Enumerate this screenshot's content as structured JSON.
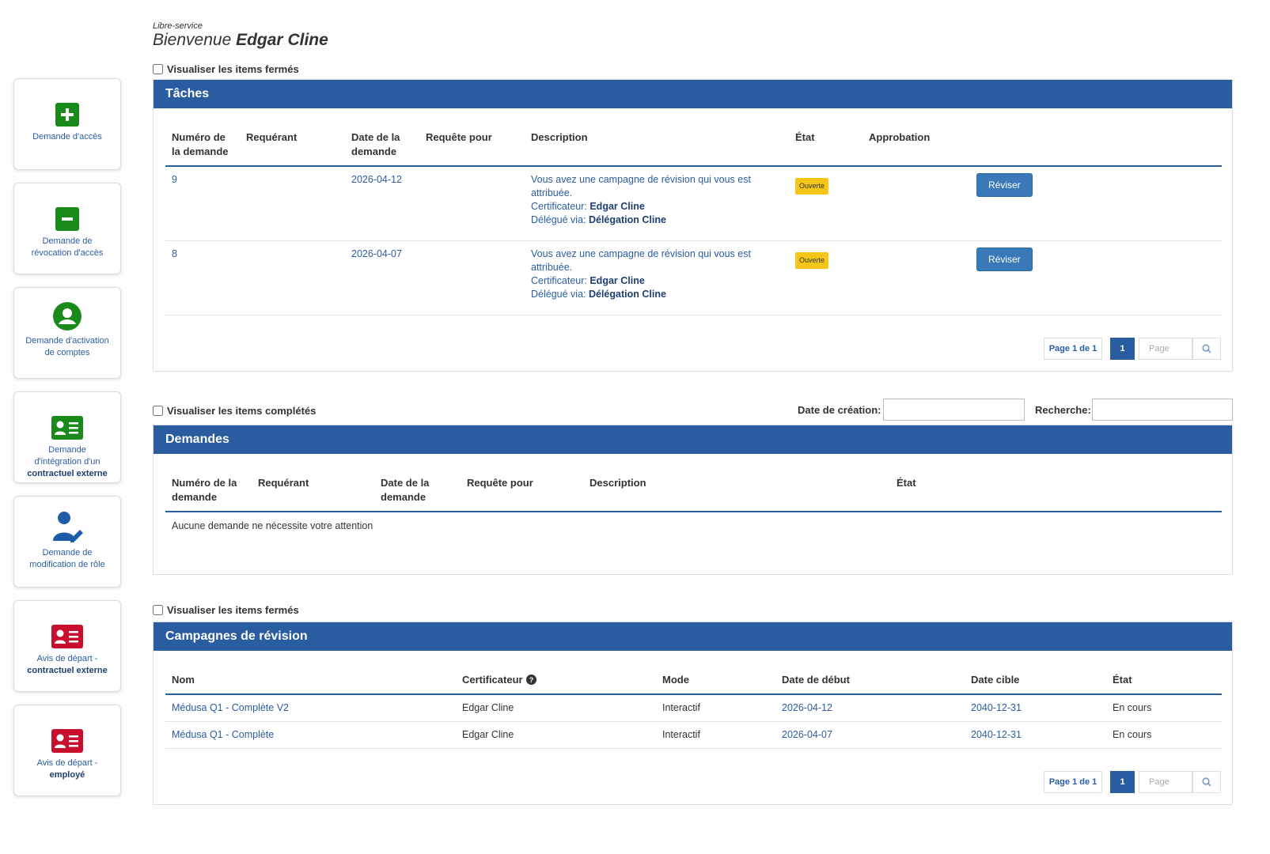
{
  "header": {
    "kicker": "Libre-service",
    "welcome": "Bienvenue",
    "user": "Edgar Cline"
  },
  "sidebar": {
    "tiles": [
      {
        "text": "Demande d'accès"
      },
      {
        "text": "Demande de révocation d'accès"
      },
      {
        "text": "Demande d'activation de comptes"
      },
      {
        "text": "Demande d'intégration d'un",
        "strong": "contractuel externe"
      },
      {
        "text": "Demande de modification de rôle"
      },
      {
        "text": "Avis de départ -",
        "strong": "contractuel externe"
      },
      {
        "text": "Avis de départ -",
        "strong": "employé"
      }
    ]
  },
  "tasks": {
    "toggle": "Visualiser les items fermés",
    "title": "Tâches",
    "columns": [
      "Numéro de la demande",
      "Requérant",
      "Date de la demande",
      "Requête pour",
      "Description",
      "État",
      "Approbation"
    ],
    "rows": [
      {
        "number": "9",
        "date": "2026-04-12",
        "description": "Vous avez une campagne de révision qui vous est attribuée.",
        "certifier_label": "Certificateur:",
        "certifier": "Edgar Cline",
        "delegate_label": "Délégué via:",
        "delegate": "Délégation Cline",
        "status": "Ouverte",
        "action": "Réviser"
      },
      {
        "number": "8",
        "date": "2026-04-07",
        "description": "Vous avez une campagne de révision qui vous est attribuée.",
        "certifier_label": "Certificateur:",
        "certifier": "Edgar Cline",
        "delegate_label": "Délégué via:",
        "delegate": "Délégation Cline",
        "status": "Ouverte",
        "action": "Réviser"
      }
    ],
    "pager": {
      "label": "Page 1 de 1",
      "current": "1",
      "placeholder": "Page"
    }
  },
  "requests": {
    "toggle": "Visualiser les items complétés",
    "created_label": "Date de création:",
    "search_label": "Recherche:",
    "title": "Demandes",
    "columns": [
      "Numéro de la demande",
      "Requérant",
      "Date de la demande",
      "Requête pour",
      "Description",
      "État"
    ],
    "empty": "Aucune demande ne nécessite votre attention"
  },
  "campaigns": {
    "toggle": "Visualiser les items fermés",
    "title": "Campagnes de révision",
    "columns": [
      "Nom",
      "Certificateur",
      "Mode",
      "Date de début",
      "Date cible",
      "État"
    ],
    "rows": [
      {
        "name": "Médusa Q1 - Complète V2",
        "certifier": "Edgar Cline",
        "mode": "Interactif",
        "start": "2026-04-12",
        "target": "2040-12-31",
        "status": "En cours"
      },
      {
        "name": "Médusa Q1 - Complète",
        "certifier": "Edgar Cline",
        "mode": "Interactif",
        "start": "2026-04-07",
        "target": "2040-12-31",
        "status": "En cours"
      }
    ],
    "pager": {
      "label": "Page 1 de 1",
      "current": "1",
      "placeholder": "Page"
    }
  }
}
